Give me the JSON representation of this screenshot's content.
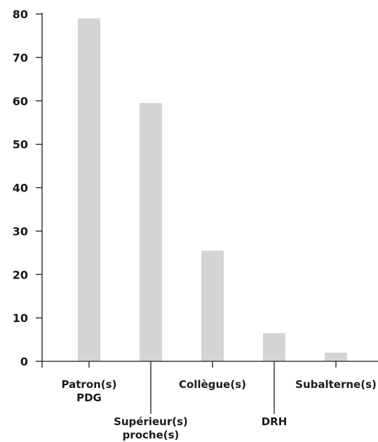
{
  "chart_data": {
    "type": "bar",
    "categories": [
      [
        "Patron(s)",
        "PDG"
      ],
      [
        "Supérieur(s)",
        "proche(s)"
      ],
      [
        "Collègue(s)"
      ],
      [
        "DRH"
      ],
      [
        "Subalterne(s)"
      ]
    ],
    "values": [
      79,
      59.5,
      25.5,
      6.5,
      2
    ],
    "ylim": [
      0,
      80
    ],
    "yticks": [
      0,
      10,
      20,
      30,
      40,
      50,
      60,
      70,
      80
    ],
    "label_positions": [
      "below",
      "low",
      "below",
      "low",
      "below"
    ],
    "bar_color": "#d4d4d4",
    "axis_color": "#1a1a1a",
    "grid": false,
    "legend": "none",
    "title": "",
    "xlabel": "",
    "ylabel": ""
  }
}
